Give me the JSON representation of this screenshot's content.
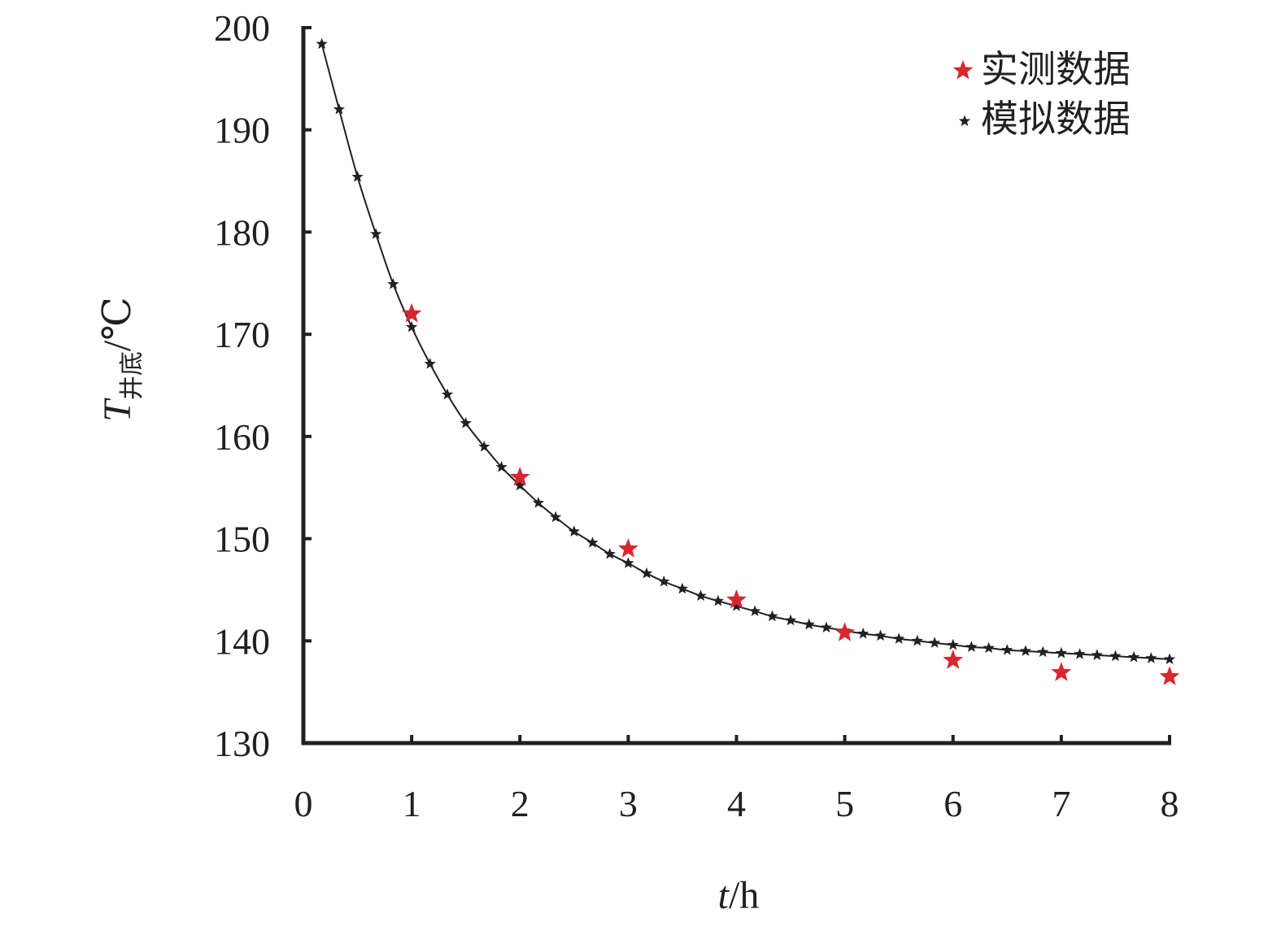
{
  "chart_data": {
    "type": "scatter",
    "title": "",
    "xlabel_var": "t",
    "xlabel_unit": "/h",
    "ylabel_var": "T",
    "ylabel_sub": "井底",
    "ylabel_unit": "/℃",
    "xlim": [
      0,
      8
    ],
    "ylim": [
      130,
      200
    ],
    "x_ticks": [
      "0",
      "1",
      "2",
      "3",
      "4",
      "5",
      "6",
      "7",
      "8"
    ],
    "y_ticks": [
      "130",
      "140",
      "150",
      "160",
      "170",
      "180",
      "190",
      "200"
    ],
    "grid": false,
    "legend_position": "top-right",
    "colors": {
      "measured": "#d7282f",
      "simulated": "#231f20",
      "axis": "#231f20"
    },
    "series": [
      {
        "name": "实测数据",
        "marker": "star-large",
        "x": [
          1,
          2,
          3,
          4,
          5,
          6,
          7,
          8
        ],
        "y": [
          172,
          156,
          149,
          144,
          140.8,
          138.1,
          136.9,
          136.5
        ]
      },
      {
        "name": "模拟数据",
        "marker": "star-small",
        "connect": "smooth-line",
        "x": [
          0.17,
          0.33,
          0.5,
          0.67,
          0.83,
          1.0,
          1.17,
          1.33,
          1.5,
          1.67,
          1.83,
          2.0,
          2.17,
          2.33,
          2.5,
          2.67,
          2.83,
          3.0,
          3.17,
          3.33,
          3.5,
          3.67,
          3.83,
          4.0,
          4.17,
          4.33,
          4.5,
          4.67,
          4.83,
          5.0,
          5.17,
          5.33,
          5.5,
          5.67,
          5.83,
          6.0,
          6.17,
          6.33,
          6.5,
          6.67,
          6.83,
          7.0,
          7.17,
          7.33,
          7.5,
          7.67,
          7.83,
          8.0
        ],
        "y": [
          198.4,
          192.0,
          185.4,
          179.8,
          174.9,
          170.7,
          167.1,
          164.1,
          161.3,
          159.0,
          157.0,
          155.2,
          153.5,
          152.1,
          150.7,
          149.6,
          148.5,
          147.6,
          146.6,
          145.8,
          145.1,
          144.4,
          143.9,
          143.4,
          142.9,
          142.4,
          142.0,
          141.6,
          141.3,
          141.0,
          140.7,
          140.5,
          140.2,
          140.0,
          139.8,
          139.6,
          139.4,
          139.3,
          139.1,
          139.0,
          138.9,
          138.8,
          138.7,
          138.6,
          138.5,
          138.4,
          138.3,
          138.2
        ]
      }
    ]
  }
}
